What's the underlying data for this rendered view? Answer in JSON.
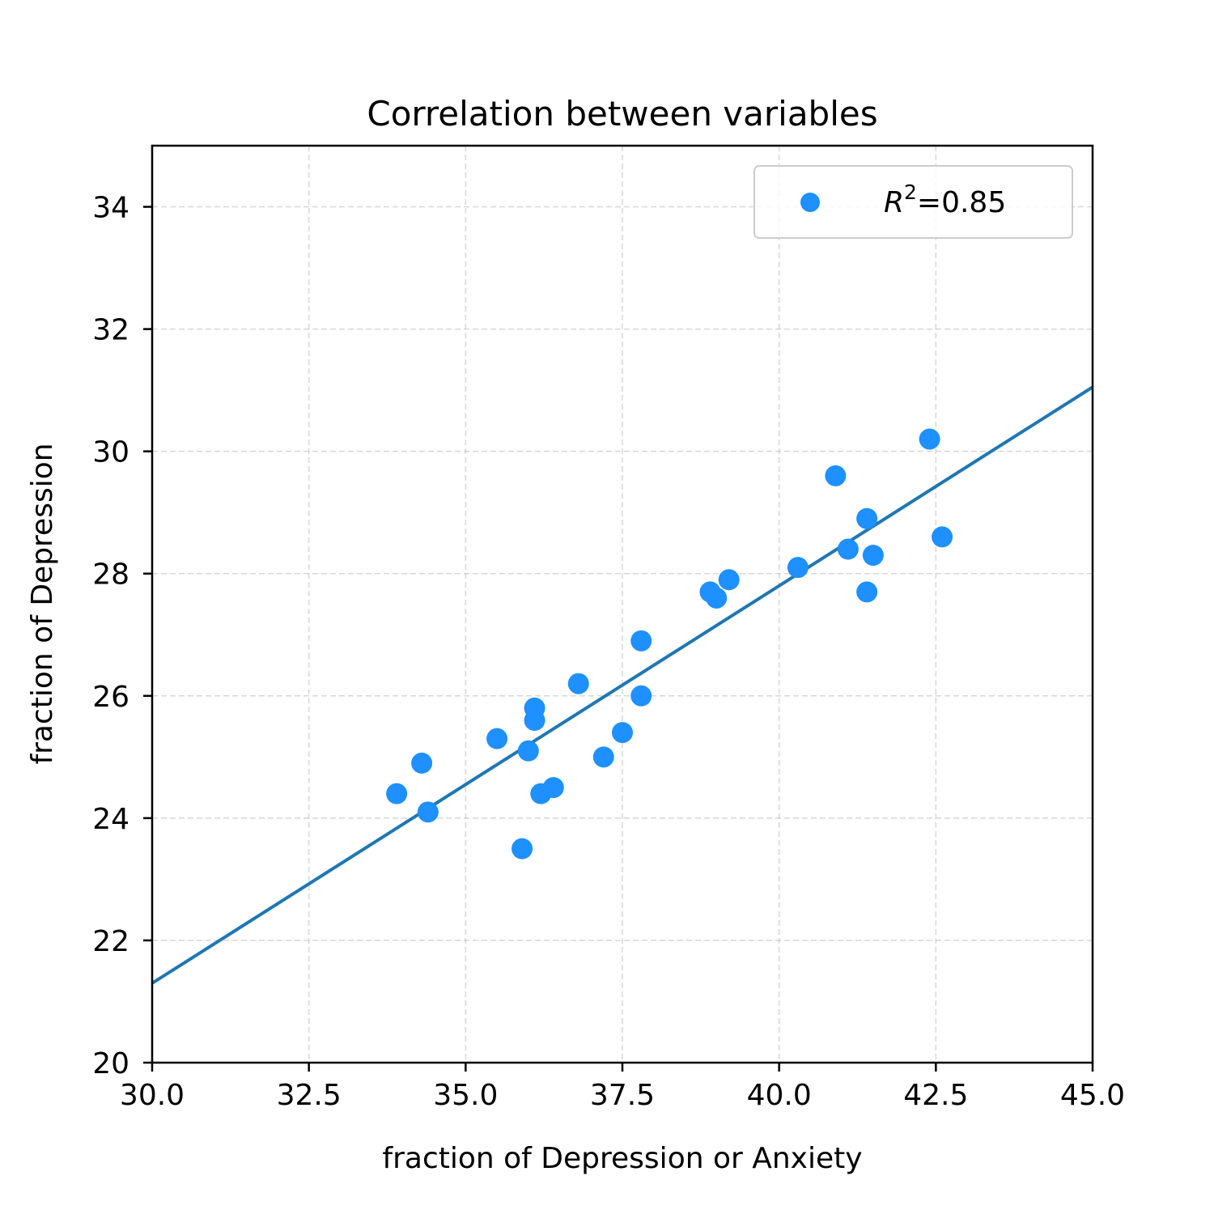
{
  "chart_data": {
    "type": "scatter",
    "title": "Correlation between variables",
    "xlabel": "fraction of Depression or Anxiety",
    "ylabel": "fraction of Depression",
    "xlim": [
      30.0,
      45.0
    ],
    "ylim": [
      20,
      35
    ],
    "xticks": [
      30.0,
      32.5,
      35.0,
      37.5,
      40.0,
      42.5,
      45.0
    ],
    "xtick_labels": [
      "30.0",
      "32.5",
      "35.0",
      "37.5",
      "40.0",
      "42.5",
      "45.0"
    ],
    "yticks": [
      20,
      22,
      24,
      26,
      28,
      30,
      32,
      34
    ],
    "ytick_labels": [
      "20",
      "22",
      "24",
      "26",
      "28",
      "30",
      "32",
      "34"
    ],
    "grid": true,
    "legend_position": "top-right",
    "legend": {
      "symbol": "R",
      "superscript": "2",
      "value_text": "=0.85"
    },
    "series": [
      {
        "color": "#1e90ff",
        "points": [
          [
            33.9,
            24.4
          ],
          [
            34.3,
            24.9
          ],
          [
            34.4,
            24.1
          ],
          [
            35.5,
            25.3
          ],
          [
            35.9,
            23.5
          ],
          [
            36.0,
            25.1
          ],
          [
            36.1,
            25.8
          ],
          [
            36.1,
            25.6
          ],
          [
            36.2,
            24.4
          ],
          [
            36.4,
            24.5
          ],
          [
            36.8,
            26.2
          ],
          [
            37.2,
            25.0
          ],
          [
            37.5,
            25.4
          ],
          [
            37.8,
            26.9
          ],
          [
            37.8,
            26.0
          ],
          [
            38.9,
            27.7
          ],
          [
            39.0,
            27.6
          ],
          [
            39.2,
            27.9
          ],
          [
            40.3,
            28.1
          ],
          [
            40.9,
            29.6
          ],
          [
            41.1,
            28.4
          ],
          [
            41.4,
            28.9
          ],
          [
            41.4,
            27.7
          ],
          [
            41.5,
            28.3
          ],
          [
            42.4,
            30.2
          ],
          [
            42.6,
            28.6
          ]
        ]
      }
    ],
    "fit_line": {
      "color": "#1f77b4",
      "x": [
        30.0,
        45.0
      ],
      "y": [
        21.3,
        31.05
      ]
    }
  }
}
